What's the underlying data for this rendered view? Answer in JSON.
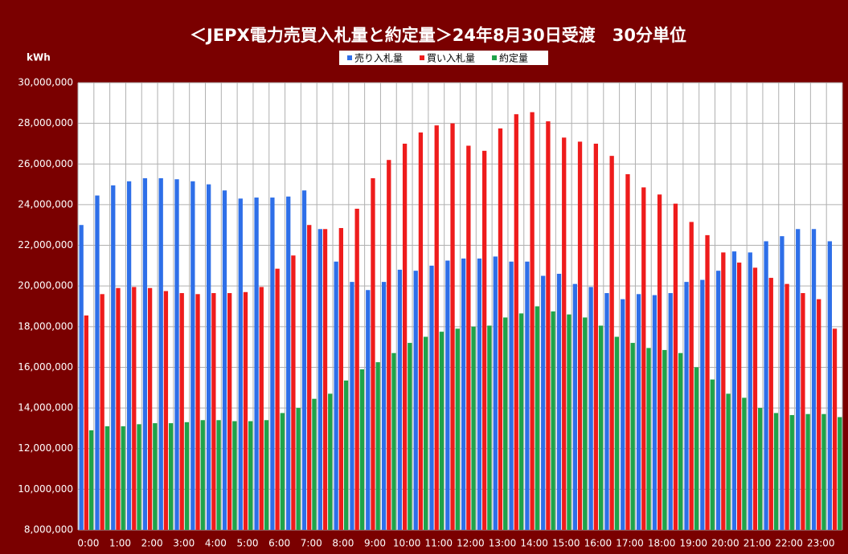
{
  "chart_data": {
    "type": "bar",
    "title": "＜JEPX電力売買入札量と約定量＞24年8月30日受渡　30分単位",
    "y_axis_label": "kWh",
    "categories": [
      "0:00",
      null,
      "1:00",
      null,
      "2:00",
      null,
      "3:00",
      null,
      "4:00",
      null,
      "5:00",
      null,
      "6:00",
      null,
      "7:00",
      null,
      "8:00",
      null,
      "9:00",
      null,
      "10:00",
      null,
      "11:00",
      null,
      "12:00",
      null,
      "13:00",
      null,
      "14:00",
      null,
      "15:00",
      null,
      "16:00",
      null,
      "17:00",
      null,
      "18:00",
      null,
      "19:00",
      null,
      "20:00",
      null,
      "21:00",
      null,
      "22:00",
      null,
      "23:00",
      null
    ],
    "series": [
      {
        "name": "売り入札量",
        "color": "#2e6fe8",
        "values": [
          23000000,
          24450000,
          24950000,
          25150000,
          25300000,
          25300000,
          25250000,
          25150000,
          25000000,
          24700000,
          24300000,
          24350000,
          24350000,
          24400000,
          24700000,
          22800000,
          21200000,
          20200000,
          19800000,
          20200000,
          20800000,
          20750000,
          21000000,
          21250000,
          21350000,
          21350000,
          21450000,
          21200000,
          21200000,
          20500000,
          20600000,
          20100000,
          19950000,
          19650000,
          19350000,
          19600000,
          19550000,
          19650000,
          20200000,
          20300000,
          20750000,
          21700000,
          21650000,
          22200000,
          22450000,
          22800000,
          22800000,
          22200000
        ]
      },
      {
        "name": "買い入札量",
        "color": "#ee1c1c",
        "values": [
          18550000,
          19600000,
          19900000,
          19950000,
          19900000,
          19750000,
          19650000,
          19600000,
          19650000,
          19650000,
          19700000,
          19950000,
          20850000,
          21500000,
          23000000,
          22800000,
          22850000,
          23800000,
          25300000,
          26200000,
          27000000,
          27550000,
          27900000,
          28000000,
          26900000,
          26650000,
          27750000,
          28450000,
          28550000,
          28100000,
          27300000,
          27100000,
          27000000,
          26400000,
          25500000,
          24850000,
          24500000,
          24050000,
          23150000,
          22500000,
          21650000,
          21150000,
          20900000,
          20400000,
          20100000,
          19650000,
          19350000,
          17900000
        ]
      },
      {
        "name": "約定量",
        "color": "#1fa34a",
        "values": [
          12900000,
          13100000,
          13100000,
          13200000,
          13250000,
          13250000,
          13300000,
          13400000,
          13400000,
          13350000,
          13350000,
          13400000,
          13750000,
          14000000,
          14450000,
          14700000,
          15350000,
          15900000,
          16250000,
          16700000,
          17200000,
          17500000,
          17750000,
          17900000,
          18000000,
          18050000,
          18450000,
          18650000,
          19000000,
          18750000,
          18600000,
          18450000,
          18050000,
          17500000,
          17200000,
          16950000,
          16850000,
          16700000,
          16000000,
          15400000,
          14700000,
          14500000,
          14000000,
          13750000,
          13650000,
          13700000,
          13700000,
          13550000
        ]
      }
    ],
    "ylim": [
      8000000,
      30000000
    ],
    "yticks": [
      {
        "value": 8000000,
        "label": "8,000,000"
      },
      {
        "value": 10000000,
        "label": "10,000,000"
      },
      {
        "value": 12000000,
        "label": "12,000,000"
      },
      {
        "value": 14000000,
        "label": "14,000,000"
      },
      {
        "value": 16000000,
        "label": "16,000,000"
      },
      {
        "value": 18000000,
        "label": "18,000,000"
      },
      {
        "value": 20000000,
        "label": "20,000,000"
      },
      {
        "value": 22000000,
        "label": "22,000,000"
      },
      {
        "value": 24000000,
        "label": "24,000,000"
      },
      {
        "value": 26000000,
        "label": "26,000,000"
      },
      {
        "value": 28000000,
        "label": "28,000,000"
      },
      {
        "value": 30000000,
        "label": "30,000,000"
      }
    ],
    "grid": true,
    "legend": "top"
  }
}
